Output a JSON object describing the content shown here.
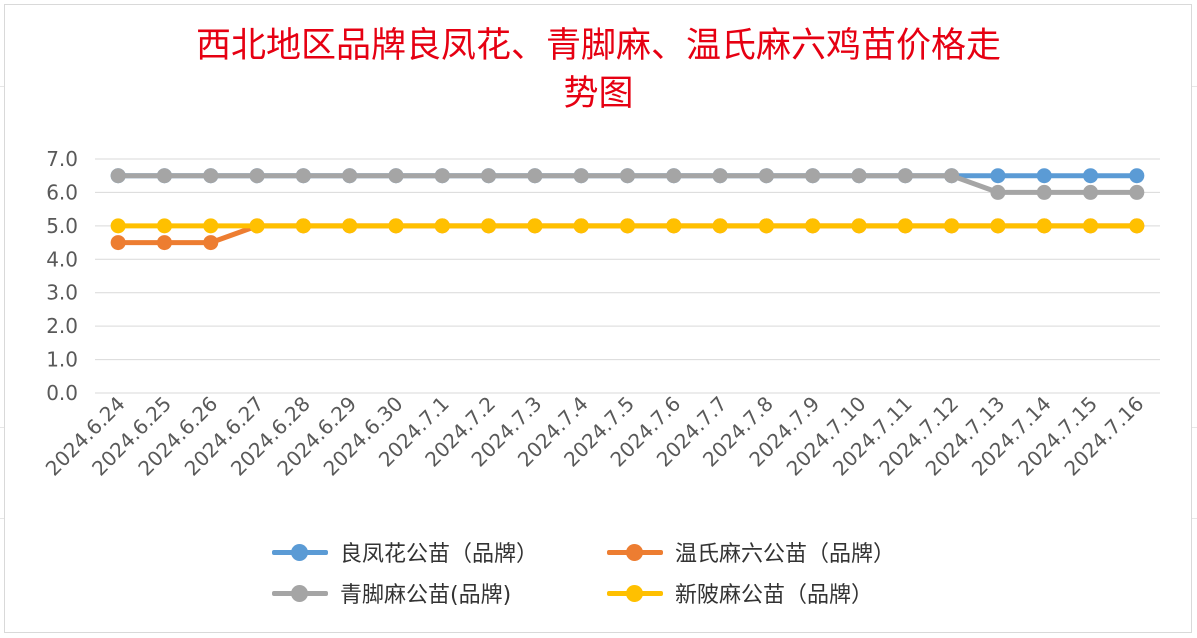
{
  "chart_data": {
    "type": "line",
    "title_lines": [
      "西北地区品牌良凤花、青脚麻、温氏麻六鸡苗价格走",
      "势图"
    ],
    "categories": [
      "2024.6.24",
      "2024.6.25",
      "2024.6.26",
      "2024.6.27",
      "2024.6.28",
      "2024.6.29",
      "2024.6.30",
      "2024.7.1",
      "2024.7.2",
      "2024.7.3",
      "2024.7.4",
      "2024.7.5",
      "2024.7.6",
      "2024.7.7",
      "2024.7.8",
      "2024.7.9",
      "2024.7.10",
      "2024.7.11",
      "2024.7.12",
      "2024.7.13",
      "2024.7.14",
      "2024.7.15",
      "2024.7.16"
    ],
    "y_ticks": [
      "0.0",
      "1.0",
      "2.0",
      "3.0",
      "4.0",
      "5.0",
      "6.0",
      "7.0"
    ],
    "ylim": [
      0,
      7
    ],
    "grid": true,
    "legend_position": "bottom",
    "series": [
      {
        "name": "良凤花公苗（品牌）",
        "color": "#5b9bd5",
        "values": [
          6.5,
          6.5,
          6.5,
          6.5,
          6.5,
          6.5,
          6.5,
          6.5,
          6.5,
          6.5,
          6.5,
          6.5,
          6.5,
          6.5,
          6.5,
          6.5,
          6.5,
          6.5,
          6.5,
          6.5,
          6.5,
          6.5,
          6.5
        ]
      },
      {
        "name": "温氏麻六公苗（品牌）",
        "color": "#ed7d31",
        "values": [
          4.5,
          4.5,
          4.5,
          5.0,
          5.0,
          5.0,
          5.0,
          5.0,
          5.0,
          5.0,
          5.0,
          5.0,
          5.0,
          5.0,
          5.0,
          5.0,
          5.0,
          5.0,
          5.0,
          5.0,
          5.0,
          5.0,
          5.0
        ]
      },
      {
        "name": "青脚麻公苗(品牌)",
        "color": "#a5a5a5",
        "values": [
          6.5,
          6.5,
          6.5,
          6.5,
          6.5,
          6.5,
          6.5,
          6.5,
          6.5,
          6.5,
          6.5,
          6.5,
          6.5,
          6.5,
          6.5,
          6.5,
          6.5,
          6.5,
          6.5,
          6.0,
          6.0,
          6.0,
          6.0
        ]
      },
      {
        "name": "新陂麻公苗（品牌）",
        "color": "#ffc000",
        "values": [
          5.0,
          5.0,
          5.0,
          5.0,
          5.0,
          5.0,
          5.0,
          5.0,
          5.0,
          5.0,
          5.0,
          5.0,
          5.0,
          5.0,
          5.0,
          5.0,
          5.0,
          5.0,
          5.0,
          5.0,
          5.0,
          5.0,
          5.0
        ]
      }
    ]
  }
}
